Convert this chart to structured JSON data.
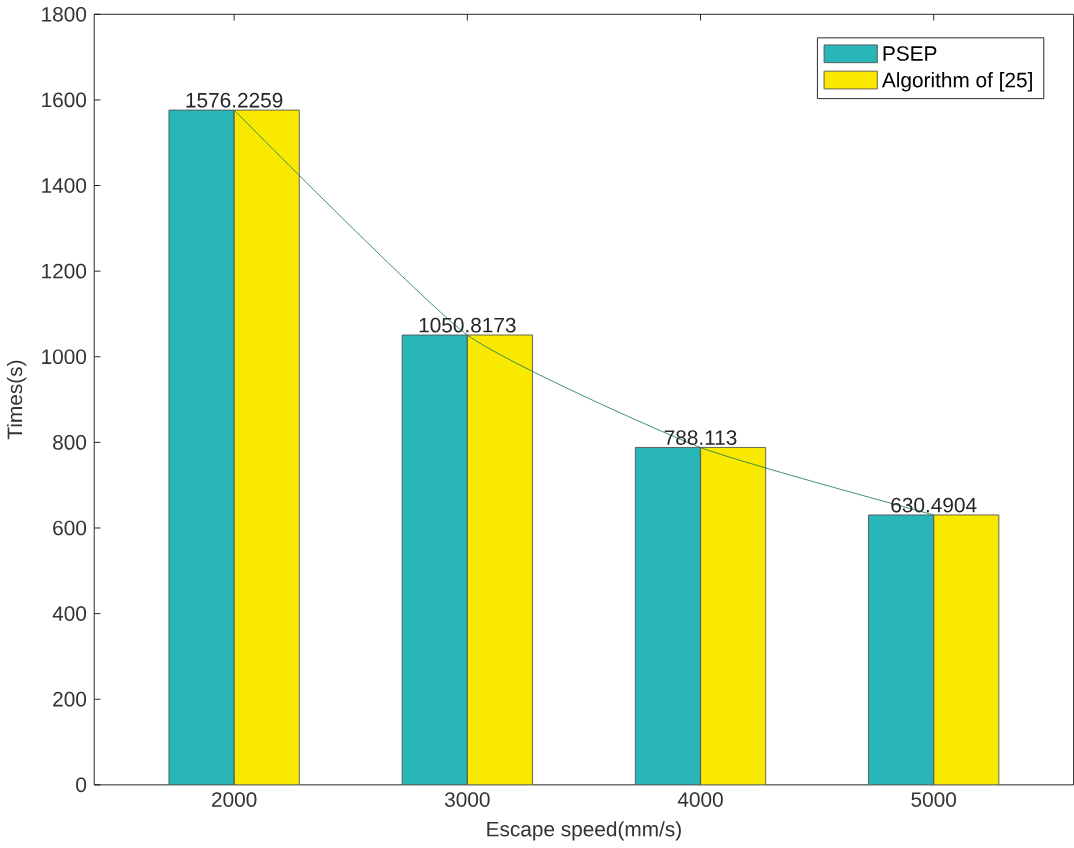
{
  "chart_data": {
    "type": "bar",
    "xlabel": "Escape speed(mm/s)",
    "ylabel": "Times(s)",
    "categories": [
      "2000",
      "3000",
      "4000",
      "5000"
    ],
    "series": [
      {
        "name": "PSEP",
        "color": "#29b6b8",
        "values": [
          1576.2259,
          1050.8173,
          788.113,
          630.4904
        ]
      },
      {
        "name": "Algorithm of [25]",
        "color": "#f9e900",
        "values": [
          1576.2259,
          1050.8173,
          788.113,
          630.4904
        ]
      },
      {
        "type": "line",
        "color": "#1a7a5a",
        "values": [
          1576.2259,
          1050.8173,
          788.113,
          630.4904
        ],
        "value_labels": [
          "1576.2259",
          "1050.8173",
          "788.113",
          "630.4904"
        ]
      }
    ],
    "ylim": [
      0,
      1800
    ],
    "yticks": [
      0,
      200,
      400,
      600,
      800,
      1000,
      1200,
      1400,
      1600,
      1800
    ],
    "legend": "top right",
    "grid": false,
    "marker": "none"
  }
}
